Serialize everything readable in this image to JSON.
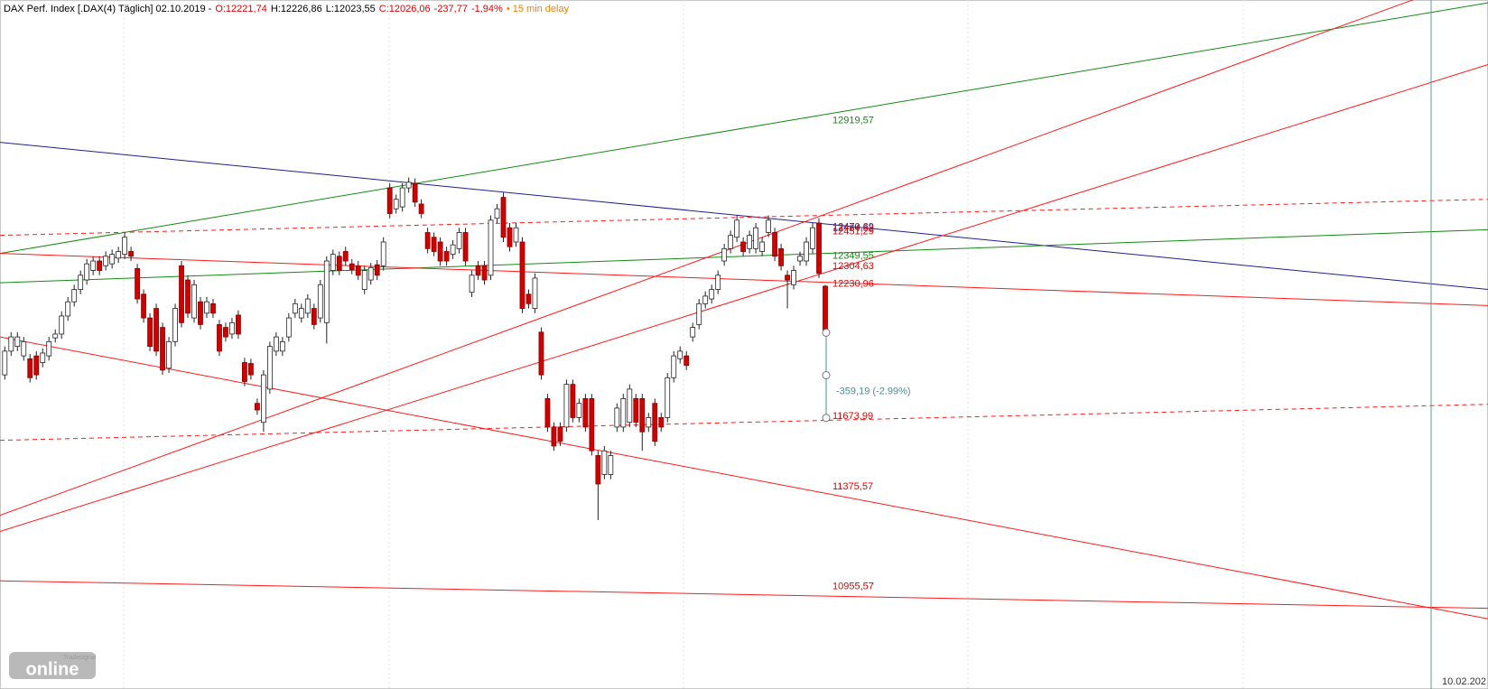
{
  "header": {
    "parts": [
      {
        "text": "DAX Perf. Index [.DAX(4) Täglich] 02.10.2019 -",
        "color": "#000000"
      },
      {
        "text": "O:12221,74",
        "color": "#e00000"
      },
      {
        "text": "H:12226,86",
        "color": "#000000"
      },
      {
        "text": "L:12023,55",
        "color": "#000000"
      },
      {
        "text": "C:12026,06",
        "color": "#e00000"
      },
      {
        "text": "-237,77",
        "color": "#e00000"
      },
      {
        "text": "-1,94%",
        "color": "#e00000"
      },
      {
        "text": "• 15 min delay",
        "color": "#f08000"
      }
    ]
  },
  "logo": {
    "small": "Tradesignal",
    "big": "online"
  },
  "chart_data": {
    "type": "candlestick",
    "ylim": [
      10524,
      13428
    ],
    "up_color": "#ffffff",
    "down_color": "#d00000",
    "ohlc": [
      [
        11848,
        11968,
        11828,
        11948
      ],
      [
        11948,
        12028,
        11928,
        12008
      ],
      [
        11968,
        12028,
        11948,
        12008
      ],
      [
        11928,
        12008,
        11908,
        11988
      ],
      [
        11916,
        11936,
        11816,
        11836
      ],
      [
        11928,
        11948,
        11828,
        11848
      ],
      [
        11900,
        11960,
        11880,
        11940
      ],
      [
        11928,
        12008,
        11908,
        11988
      ],
      [
        12004,
        12040,
        11984,
        12020
      ],
      [
        12020,
        12116,
        12000,
        12096
      ],
      [
        12096,
        12176,
        12076,
        12156
      ],
      [
        12156,
        12228,
        12136,
        12208
      ],
      [
        12208,
        12288,
        12188,
        12268
      ],
      [
        12248,
        12336,
        12228,
        12316
      ],
      [
        12288,
        12348,
        12268,
        12328
      ],
      [
        12328,
        12348,
        12268,
        12288
      ],
      [
        12308,
        12368,
        12288,
        12348
      ],
      [
        12316,
        12376,
        12296,
        12356
      ],
      [
        12340,
        12388,
        12320,
        12368
      ],
      [
        12356,
        12448,
        12336,
        12428
      ],
      [
        12368,
        12388,
        12328,
        12348
      ],
      [
        12296,
        12316,
        12148,
        12168
      ],
      [
        12188,
        12208,
        12068,
        12088
      ],
      [
        12088,
        12108,
        11948,
        11968
      ],
      [
        12128,
        12148,
        11928,
        11948
      ],
      [
        12048,
        12068,
        11848,
        11868
      ],
      [
        11876,
        12008,
        11856,
        11988
      ],
      [
        11988,
        12148,
        11968,
        12128
      ],
      [
        12308,
        12328,
        12048,
        12068
      ],
      [
        12248,
        12268,
        12088,
        12108
      ],
      [
        12088,
        12248,
        12068,
        12228
      ],
      [
        12156,
        12176,
        12040,
        12060
      ],
      [
        12108,
        12176,
        12088,
        12156
      ],
      [
        12148,
        12168,
        12088,
        12108
      ],
      [
        12060,
        12080,
        11928,
        11948
      ],
      [
        12048,
        12068,
        11988,
        12008
      ],
      [
        12020,
        12088,
        12000,
        12068
      ],
      [
        12100,
        12120,
        12000,
        12020
      ],
      [
        11900,
        11920,
        11800,
        11820
      ],
      [
        11896,
        11916,
        11828,
        11848
      ],
      [
        11728,
        11748,
        11680,
        11700
      ],
      [
        11648,
        11868,
        11608,
        11848
      ],
      [
        11788,
        11988,
        11768,
        11968
      ],
      [
        11948,
        12028,
        11928,
        12008
      ],
      [
        11948,
        12008,
        11928,
        11988
      ],
      [
        12008,
        12108,
        11988,
        12088
      ],
      [
        12108,
        12168,
        12088,
        12148
      ],
      [
        12088,
        12148,
        12068,
        12128
      ],
      [
        12108,
        12188,
        12088,
        12168
      ],
      [
        12128,
        12148,
        12040,
        12060
      ],
      [
        12088,
        12248,
        12068,
        12228
      ],
      [
        12068,
        12348,
        11980,
        12328
      ],
      [
        12288,
        12376,
        12268,
        12356
      ],
      [
        12348,
        12368,
        12268,
        12288
      ],
      [
        12368,
        12388,
        12308,
        12328
      ],
      [
        12316,
        12336,
        12272,
        12292
      ],
      [
        12308,
        12328,
        12248,
        12268
      ],
      [
        12208,
        12308,
        12188,
        12288
      ],
      [
        12248,
        12320,
        12228,
        12300
      ],
      [
        12312,
        12332,
        12248,
        12268
      ],
      [
        12308,
        12428,
        12288,
        12408
      ],
      [
        12636,
        12656,
        12508,
        12528
      ],
      [
        12548,
        12608,
        12528,
        12588
      ],
      [
        12556,
        12656,
        12536,
        12636
      ],
      [
        12636,
        12680,
        12616,
        12660
      ],
      [
        12656,
        12676,
        12556,
        12576
      ],
      [
        12568,
        12588,
        12508,
        12528
      ],
      [
        12448,
        12468,
        12360,
        12380
      ],
      [
        12428,
        12448,
        12348,
        12368
      ],
      [
        12408,
        12428,
        12308,
        12328
      ],
      [
        12368,
        12388,
        12308,
        12328
      ],
      [
        12356,
        12416,
        12336,
        12396
      ],
      [
        12380,
        12468,
        12360,
        12448
      ],
      [
        12448,
        12468,
        12308,
        12328
      ],
      [
        12196,
        12288,
        12176,
        12268
      ],
      [
        12308,
        12328,
        12248,
        12268
      ],
      [
        12308,
        12328,
        12228,
        12248
      ],
      [
        12268,
        12520,
        12248,
        12500
      ],
      [
        12508,
        12568,
        12488,
        12548
      ],
      [
        12596,
        12616,
        12408,
        12428
      ],
      [
        12468,
        12488,
        12368,
        12388
      ],
      [
        12408,
        12488,
        12388,
        12468
      ],
      [
        12408,
        12428,
        12108,
        12128
      ],
      [
        12188,
        12208,
        12128,
        12148
      ],
      [
        12128,
        12276,
        12108,
        12256
      ],
      [
        12028,
        12048,
        11828,
        11848
      ],
      [
        11748,
        11768,
        11608,
        11628
      ],
      [
        11628,
        11648,
        11528,
        11548
      ],
      [
        11628,
        11648,
        11548,
        11568
      ],
      [
        11628,
        11828,
        11608,
        11808
      ],
      [
        11808,
        11828,
        11648,
        11668
      ],
      [
        11668,
        11748,
        11648,
        11728
      ],
      [
        11748,
        11768,
        11608,
        11628
      ],
      [
        11748,
        11768,
        11508,
        11528
      ],
      [
        11508,
        11528,
        11236,
        11388
      ],
      [
        11428,
        11548,
        11408,
        11528
      ],
      [
        11428,
        11528,
        11408,
        11508
      ],
      [
        11628,
        11728,
        11608,
        11708
      ],
      [
        11628,
        11768,
        11608,
        11748
      ],
      [
        11648,
        11808,
        11628,
        11788
      ],
      [
        11748,
        11768,
        11628,
        11648
      ],
      [
        11748,
        11768,
        11528,
        11608
      ],
      [
        11628,
        11688,
        11608,
        11668
      ],
      [
        11728,
        11748,
        11548,
        11568
      ],
      [
        11668,
        11688,
        11608,
        11628
      ],
      [
        11668,
        11856,
        11648,
        11836
      ],
      [
        11836,
        11948,
        11816,
        11928
      ],
      [
        11916,
        11968,
        11896,
        11948
      ],
      [
        11928,
        11948,
        11868,
        11888
      ],
      [
        12008,
        12068,
        11988,
        12048
      ],
      [
        12060,
        12168,
        12040,
        12148
      ],
      [
        12148,
        12200,
        12128,
        12180
      ],
      [
        12168,
        12228,
        12148,
        12208
      ],
      [
        12208,
        12288,
        12188,
        12268
      ],
      [
        12328,
        12400,
        12308,
        12380
      ],
      [
        12380,
        12456,
        12360,
        12436
      ],
      [
        12428,
        12520,
        12408,
        12500
      ],
      [
        12408,
        12428,
        12348,
        12368
      ],
      [
        12380,
        12456,
        12360,
        12436
      ],
      [
        12380,
        12488,
        12360,
        12468
      ],
      [
        12368,
        12428,
        12348,
        12408
      ],
      [
        12448,
        12520,
        12428,
        12500
      ],
      [
        12448,
        12468,
        12328,
        12348
      ],
      [
        12380,
        12400,
        12288,
        12308
      ],
      [
        12268,
        12288,
        12128,
        12248
      ],
      [
        12228,
        12308,
        12208,
        12288
      ],
      [
        12328,
        12368,
        12308,
        12348
      ],
      [
        12328,
        12428,
        12308,
        12408
      ],
      [
        12380,
        12488,
        12360,
        12468
      ],
      [
        12488,
        12508,
        12256,
        12276
      ],
      [
        12221.74,
        12226.86,
        12023.55,
        12026.06
      ]
    ],
    "trendlines": [
      {
        "color": "#1f1f8f",
        "dashed": false,
        "left": 12828,
        "right": 12208
      },
      {
        "color": "#138a13",
        "dashed": false,
        "left": 12360,
        "right": 13416
      },
      {
        "color": "#138a13",
        "dashed": false,
        "left": 12236,
        "right": 12460
      },
      {
        "color": "#ff1a1a",
        "dashed": false,
        "left": 12360,
        "right": 12140
      },
      {
        "color": "#ff1a1a",
        "dashed": false,
        "left": 12008,
        "right": 10820
      },
      {
        "color": "#ff1a1a",
        "dashed": false,
        "left": 10980,
        "right": 10864
      },
      {
        "color": "#ff1a1a",
        "dashed": false,
        "left": 11256,
        "right": 13544
      },
      {
        "color": "#ff1a1a",
        "dashed": false,
        "left": 11188,
        "right": 13156
      },
      {
        "color": "#ff1a1a",
        "dashed": true,
        "left": 12436,
        "right": 12588
      },
      {
        "color": "#ff1a1a",
        "dashed": true,
        "left": 11572,
        "right": 11724
      }
    ],
    "annotations": [
      {
        "value": 12919.57,
        "label": "12919,57",
        "color": "#138a13"
      },
      {
        "value": 12470.69,
        "label": "12470,69",
        "color": "#1f1f8f"
      },
      {
        "value": 12464.52,
        "label": "12464,52",
        "color": "#b02020"
      },
      {
        "value": 12451.29,
        "label": "12451,29",
        "color": "#e00000"
      },
      {
        "value": 12349.55,
        "label": "12349,55",
        "color": "#138a13"
      },
      {
        "value": 12304.63,
        "label": "12304,63",
        "color": "#e00000"
      },
      {
        "value": 12230.96,
        "label": "12230,96",
        "color": "#e00000"
      },
      {
        "value": 11673.99,
        "label": "11673,99",
        "color": "#e00000"
      },
      {
        "value": 11375.57,
        "label": "11375,57",
        "color": "#e00000"
      },
      {
        "value": 10955.57,
        "label": "10955,57",
        "color": "#e00000"
      }
    ],
    "measure": {
      "from": 12026.06,
      "to": 11666.87,
      "label": "-359,19 (-2.99%)",
      "color": "#4a8f8f"
    },
    "date_label": "10.02.202",
    "marker_color": "#5a9e8e"
  }
}
